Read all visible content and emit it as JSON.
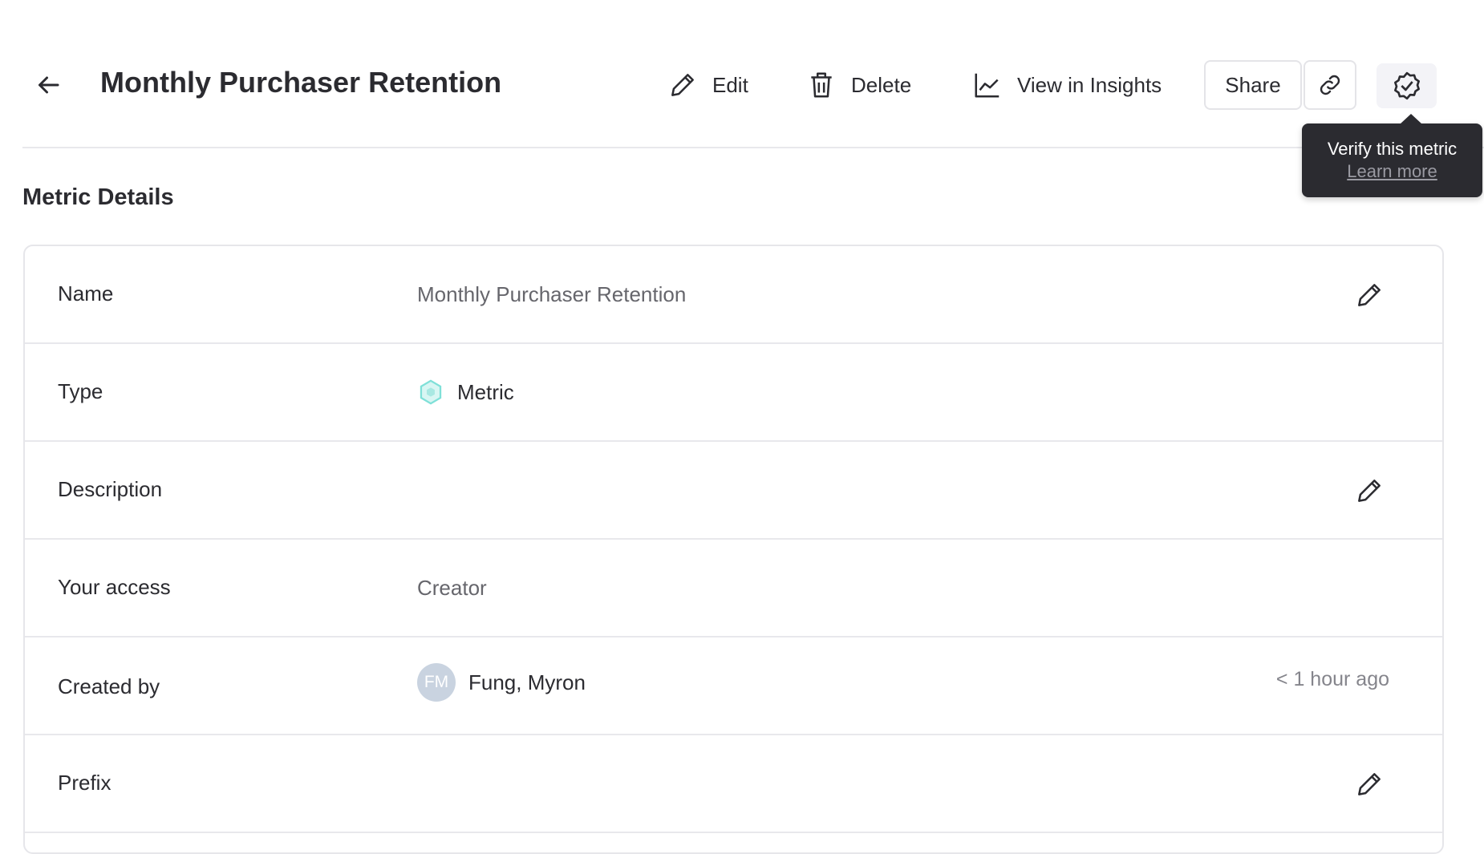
{
  "header": {
    "title": "Monthly Purchaser Retention",
    "actions": {
      "edit": "Edit",
      "delete": "Delete",
      "insights": "View in Insights",
      "share": "Share"
    },
    "tooltip": {
      "text": "Verify this metric",
      "link": "Learn more"
    }
  },
  "section_title": "Metric Details",
  "rows": [
    {
      "label": "Name",
      "value": "Monthly Purchaser Retention"
    },
    {
      "label": "Type",
      "value": "Metric"
    },
    {
      "label": "Description",
      "value": ""
    },
    {
      "label": "Your access",
      "value": "Creator"
    },
    {
      "label": "Created by",
      "value": "Fung, Myron",
      "initials": "FM",
      "time": "< 1 hour ago"
    },
    {
      "label": "Prefix",
      "value": ""
    }
  ],
  "colors": {
    "metric_icon": "#7fe0d8",
    "avatar": "#c9d3e0",
    "tooltip_bg": "#2b2b30"
  }
}
